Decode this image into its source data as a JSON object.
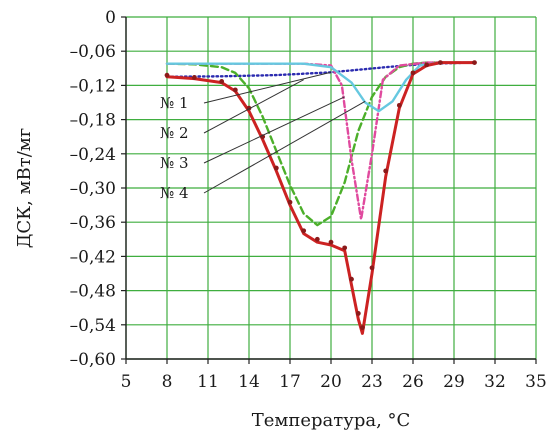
{
  "chart_data": {
    "type": "line",
    "xlabel": "Температура, °C",
    "ylabel": "ДСК, мВт/мг",
    "xlim": [
      5,
      35
    ],
    "ylim": [
      -0.6,
      0
    ],
    "x_ticks": [
      5,
      8,
      11,
      14,
      17,
      20,
      23,
      26,
      29,
      32,
      35
    ],
    "y_ticks": [
      0,
      -0.06,
      -0.12,
      -0.18,
      -0.24,
      -0.3,
      -0.36,
      -0.42,
      -0.48,
      -0.54,
      -0.6
    ],
    "x_tick_labels": [
      "5",
      "8",
      "11",
      "14",
      "17",
      "20",
      "23",
      "26",
      "29",
      "32",
      "35"
    ],
    "y_tick_labels": [
      "0",
      "–0,06",
      "–0,12",
      "–0,18",
      "–0,24",
      "–0,30",
      "–0,36",
      "–0,42",
      "–0,48",
      "–0,54",
      "–0,60"
    ],
    "grid": true,
    "grid_color": "#3fae3f",
    "series": [
      {
        "name": "№ 1",
        "color": "#2b2bb0",
        "style": "dotted",
        "x": [
          8,
          12,
          16,
          20,
          24,
          27,
          30.5
        ],
        "y": [
          -0.105,
          -0.104,
          -0.102,
          -0.097,
          -0.088,
          -0.082,
          -0.08
        ]
      },
      {
        "name": "№ 2",
        "color": "#4caf2a",
        "style": "dashed",
        "x": [
          8,
          10,
          12,
          13,
          14,
          15,
          16,
          17,
          18,
          19,
          20,
          21,
          22,
          23,
          24,
          25,
          26,
          27,
          28,
          30.5
        ],
        "y": [
          -0.082,
          -0.083,
          -0.088,
          -0.098,
          -0.125,
          -0.175,
          -0.235,
          -0.295,
          -0.345,
          -0.365,
          -0.35,
          -0.29,
          -0.2,
          -0.14,
          -0.105,
          -0.088,
          -0.082,
          -0.08,
          -0.08,
          -0.08
        ]
      },
      {
        "name": "№ 3",
        "color": "#e04a9e",
        "style": "dashdot",
        "x": [
          8,
          18,
          20,
          20.8,
          21.5,
          22.2,
          23,
          23.8,
          25,
          27,
          30.5
        ],
        "y": [
          -0.082,
          -0.082,
          -0.085,
          -0.12,
          -0.25,
          -0.355,
          -0.24,
          -0.11,
          -0.085,
          -0.08,
          -0.08
        ]
      },
      {
        "name": "№ 4",
        "color": "#66c8e0",
        "style": "solid",
        "x": [
          8,
          18,
          20,
          21.5,
          22.5,
          23.5,
          24.5,
          25.5,
          26.5,
          28,
          30.5
        ],
        "y": [
          -0.082,
          -0.082,
          -0.088,
          -0.115,
          -0.15,
          -0.165,
          -0.148,
          -0.11,
          -0.085,
          -0.08,
          -0.08
        ]
      },
      {
        "name": "",
        "color": "#cc2222",
        "style": "solid",
        "x": [
          8,
          10,
          12,
          13,
          14,
          15,
          16,
          17,
          18,
          19,
          20,
          21,
          21.5,
          22,
          22.3,
          23,
          24,
          25,
          26,
          27,
          28,
          30.5
        ],
        "y": [
          -0.105,
          -0.108,
          -0.115,
          -0.13,
          -0.165,
          -0.215,
          -0.27,
          -0.33,
          -0.38,
          -0.395,
          -0.4,
          -0.41,
          -0.47,
          -0.53,
          -0.555,
          -0.45,
          -0.28,
          -0.16,
          -0.1,
          -0.085,
          -0.08,
          -0.08
        ]
      },
      {
        "name": "",
        "color": "#8b1a1a",
        "style": "dots",
        "x": [
          8,
          10,
          12,
          13,
          14,
          15,
          16,
          17,
          18,
          19,
          20,
          21,
          21.5,
          22,
          22.3,
          23,
          24,
          25,
          26,
          27,
          28,
          30.5
        ],
        "y": [
          -0.102,
          -0.106,
          -0.113,
          -0.128,
          -0.16,
          -0.21,
          -0.265,
          -0.325,
          -0.375,
          -0.39,
          -0.395,
          -0.405,
          -0.46,
          -0.52,
          -0.545,
          -0.44,
          -0.27,
          -0.155,
          -0.098,
          -0.084,
          -0.08,
          -0.08
        ]
      }
    ],
    "legend": {
      "items": [
        "№ 1",
        "№ 2",
        "№ 3",
        "№ 4"
      ],
      "placement": "left, with leader lines to the curves"
    }
  }
}
